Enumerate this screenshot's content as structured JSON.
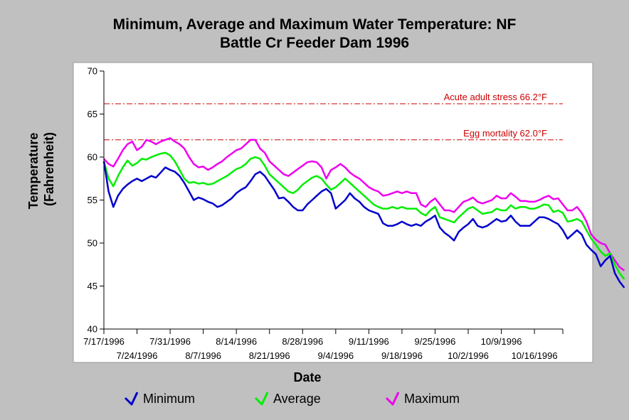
{
  "chart_data": {
    "type": "line",
    "title": "Minimum, Average and Maximum Water Temperature: NF\nBattle Cr Feeder Dam 1996",
    "xlabel": "Date",
    "ylabel_lines": [
      "Temperature",
      "(Fahrenheit)"
    ],
    "ylim": [
      40,
      70
    ],
    "yticks": [
      40,
      45,
      50,
      55,
      60,
      65,
      70
    ],
    "x_start": "7/17/1996",
    "x_end": "10/22/1996",
    "xticks": [
      "7/17/1996",
      "7/24/1996",
      "7/31/1996",
      "8/7/1996",
      "8/14/1996",
      "8/21/1996",
      "8/28/1996",
      "9/4/1996",
      "9/11/1996",
      "9/18/1996",
      "9/25/1996",
      "10/2/1996",
      "10/9/1996",
      "10/16/1996"
    ],
    "grid": false,
    "legend_position": "bottom",
    "reference_lines": [
      {
        "label": "Acute adult stress 66.2°F",
        "value": 66.2,
        "color": "#cc0000"
      },
      {
        "label": "Egg mortality 62.0°F",
        "value": 62.0,
        "color": "#cc0000"
      }
    ],
    "series": [
      {
        "name": "Minimum",
        "color": "#0000cc",
        "values": [
          59.5,
          56.0,
          54.2,
          55.5,
          56.3,
          56.8,
          57.2,
          57.5,
          57.2,
          57.5,
          57.8,
          57.6,
          58.2,
          58.8,
          58.5,
          58.3,
          57.8,
          57.0,
          56.0,
          55.0,
          55.3,
          55.1,
          54.8,
          54.6,
          54.2,
          54.4,
          54.8,
          55.2,
          55.8,
          56.2,
          56.5,
          57.2,
          58.0,
          58.3,
          57.8,
          57.0,
          56.2,
          55.2,
          55.3,
          54.8,
          54.2,
          53.8,
          53.8,
          54.5,
          55.0,
          55.5,
          56.0,
          56.3,
          55.8,
          54.0,
          54.5,
          55.0,
          55.8,
          55.2,
          54.8,
          54.2,
          53.8,
          53.6,
          53.4,
          52.3,
          52.0,
          52.0,
          52.2,
          52.5,
          52.2,
          52.0,
          52.2,
          52.0,
          52.5,
          52.8,
          53.2,
          51.8,
          51.2,
          50.8,
          50.3,
          51.3,
          51.8,
          52.2,
          52.8,
          52.0,
          51.8,
          52.0,
          52.4,
          52.8,
          52.5,
          52.6,
          53.2,
          52.5,
          52.0,
          52.0,
          52.0,
          52.5,
          53.0,
          53.0,
          52.8,
          52.5,
          52.2,
          51.5,
          50.5,
          51.0,
          51.5,
          51.0,
          49.8,
          49.2,
          48.7,
          47.3,
          48.0,
          48.5,
          46.5,
          45.5,
          44.8
        ]
      },
      {
        "name": "Average",
        "color": "#00ee00",
        "values": [
          59.5,
          57.5,
          56.6,
          57.8,
          58.8,
          59.6,
          59.0,
          59.3,
          59.8,
          59.7,
          60.0,
          60.2,
          60.4,
          60.5,
          60.2,
          59.5,
          58.5,
          57.5,
          57.0,
          57.1,
          56.9,
          57.0,
          56.8,
          56.9,
          57.2,
          57.5,
          57.8,
          58.2,
          58.6,
          58.8,
          59.2,
          59.8,
          60.0,
          59.8,
          59.0,
          58.0,
          57.5,
          57.0,
          56.5,
          56.0,
          55.8,
          56.2,
          56.8,
          57.2,
          57.6,
          57.8,
          57.5,
          56.8,
          56.2,
          56.5,
          57.0,
          57.5,
          57.0,
          56.5,
          56.0,
          55.5,
          55.0,
          54.5,
          54.2,
          54.0,
          54.0,
          54.2,
          54.0,
          54.2,
          54.0,
          54.0,
          54.0,
          53.5,
          53.2,
          53.8,
          54.2,
          53.0,
          52.8,
          52.6,
          52.4,
          53.0,
          53.5,
          54.0,
          54.2,
          53.8,
          53.4,
          53.5,
          53.6,
          54.0,
          53.8,
          53.8,
          54.4,
          54.0,
          54.2,
          54.2,
          54.0,
          54.0,
          54.2,
          54.5,
          54.4,
          53.6,
          53.8,
          53.5,
          52.5,
          52.6,
          52.8,
          52.5,
          51.5,
          50.5,
          49.8,
          49.0,
          48.5,
          48.8,
          47.5,
          46.5,
          45.8
        ]
      },
      {
        "name": "Maximum",
        "color": "#ee00ee",
        "values": [
          59.8,
          59.2,
          58.9,
          59.8,
          60.8,
          61.5,
          61.8,
          60.8,
          61.2,
          62.0,
          61.8,
          61.5,
          61.8,
          62.0,
          62.2,
          61.8,
          61.5,
          61.0,
          60.0,
          59.2,
          58.8,
          58.9,
          58.5,
          58.8,
          59.2,
          59.5,
          60.0,
          60.4,
          60.8,
          61.0,
          61.5,
          62.0,
          62.0,
          61.0,
          60.5,
          59.5,
          59.0,
          58.5,
          58.0,
          57.8,
          58.2,
          58.6,
          59.0,
          59.4,
          59.5,
          59.4,
          58.8,
          57.5,
          58.5,
          58.8,
          59.2,
          58.8,
          58.2,
          57.8,
          57.5,
          57.0,
          56.5,
          56.2,
          56.0,
          55.5,
          55.6,
          55.8,
          56.0,
          55.8,
          56.0,
          55.8,
          55.8,
          54.5,
          54.2,
          54.8,
          55.2,
          54.5,
          53.8,
          53.8,
          53.6,
          54.2,
          54.8,
          55.0,
          55.3,
          54.8,
          54.6,
          54.8,
          55.0,
          55.5,
          55.2,
          55.2,
          55.8,
          55.4,
          54.9,
          54.9,
          54.8,
          54.8,
          55.0,
          55.3,
          55.5,
          55.1,
          55.2,
          54.5,
          53.8,
          53.8,
          54.2,
          53.5,
          52.5,
          51.0,
          50.4,
          50.0,
          49.8,
          48.8,
          48.0,
          47.2,
          46.8
        ]
      }
    ]
  }
}
